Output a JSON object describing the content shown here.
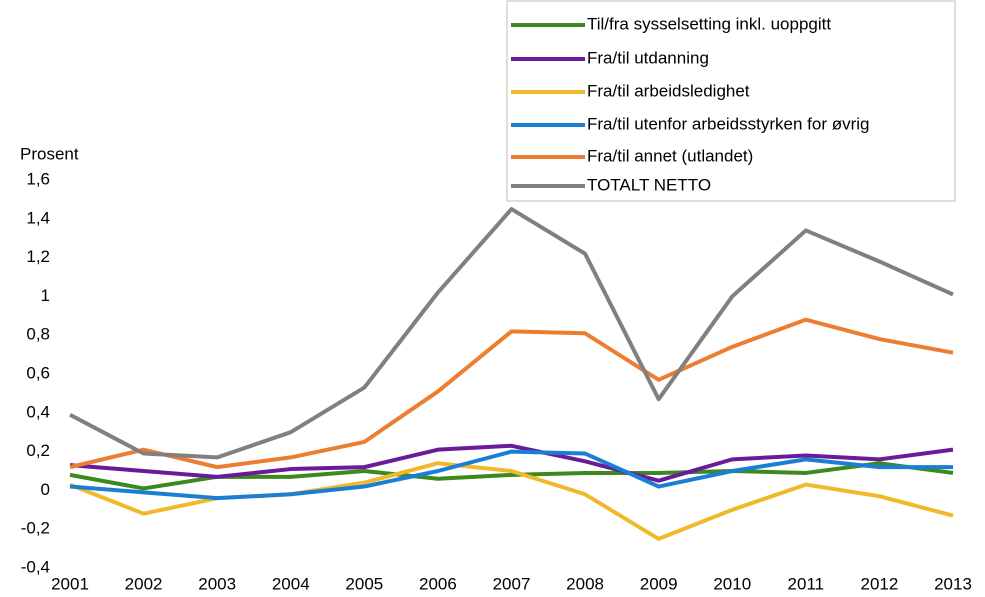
{
  "chart_data": {
    "type": "line",
    "y_label": "Prosent",
    "categories": [
      "2001",
      "2002",
      "2003",
      "2004",
      "2005",
      "2006",
      "2007",
      "2008",
      "2009",
      "2010",
      "2011",
      "2012",
      "2013"
    ],
    "series": [
      {
        "name": "Til/fra sysselsetting inkl. uoppgitt",
        "color": "#3a8a1e",
        "values": [
          0.08,
          0.01,
          0.07,
          0.07,
          0.1,
          0.06,
          0.08,
          0.09,
          0.09,
          0.1,
          0.09,
          0.14,
          0.09
        ]
      },
      {
        "name": "Fra/til utdanning",
        "color": "#6a1b9a",
        "values": [
          0.13,
          0.1,
          0.07,
          0.11,
          0.12,
          0.21,
          0.23,
          0.15,
          0.05,
          0.16,
          0.18,
          0.16,
          0.21
        ]
      },
      {
        "name": "Fra/til arbeidsledighet",
        "color": "#f0b92a",
        "values": [
          0.03,
          -0.12,
          -0.04,
          -0.02,
          0.04,
          0.14,
          0.1,
          -0.02,
          -0.25,
          -0.1,
          0.03,
          -0.03,
          -0.13
        ]
      },
      {
        "name": "Fra/til utenfor arbeidsstyrken for øvrig",
        "color": "#1a7fd4",
        "values": [
          0.02,
          -0.01,
          -0.04,
          -0.02,
          0.02,
          0.1,
          0.2,
          0.19,
          0.02,
          0.1,
          0.16,
          0.12,
          0.12
        ]
      },
      {
        "name": "Fra/til annet (utlandet)",
        "color": "#ed7d31",
        "values": [
          0.12,
          0.21,
          0.12,
          0.17,
          0.25,
          0.51,
          0.82,
          0.81,
          0.57,
          0.74,
          0.88,
          0.78,
          0.71
        ]
      },
      {
        "name": "TOTALT NETTO",
        "color": "#808080",
        "values": [
          0.39,
          0.19,
          0.17,
          0.3,
          0.53,
          1.02,
          1.45,
          1.22,
          0.47,
          1.0,
          1.34,
          1.18,
          1.01
        ]
      }
    ],
    "ylim": [
      -0.4,
      1.6
    ],
    "yticks": [
      {
        "value": -0.4,
        "label": "-0,4"
      },
      {
        "value": -0.2,
        "label": "-0,2"
      },
      0,
      {
        "value": 0.2,
        "label": "0,2"
      },
      {
        "value": 0.4,
        "label": "0,4"
      },
      {
        "value": 0.6,
        "label": "0,6"
      },
      {
        "value": 0.8,
        "label": "0,8"
      },
      1,
      {
        "value": 1.2,
        "label": "1,2"
      },
      {
        "value": 1.4,
        "label": "1,4"
      },
      {
        "value": 1.6,
        "label": "1,6"
      }
    ],
    "grid": false,
    "legend": "upper right"
  }
}
